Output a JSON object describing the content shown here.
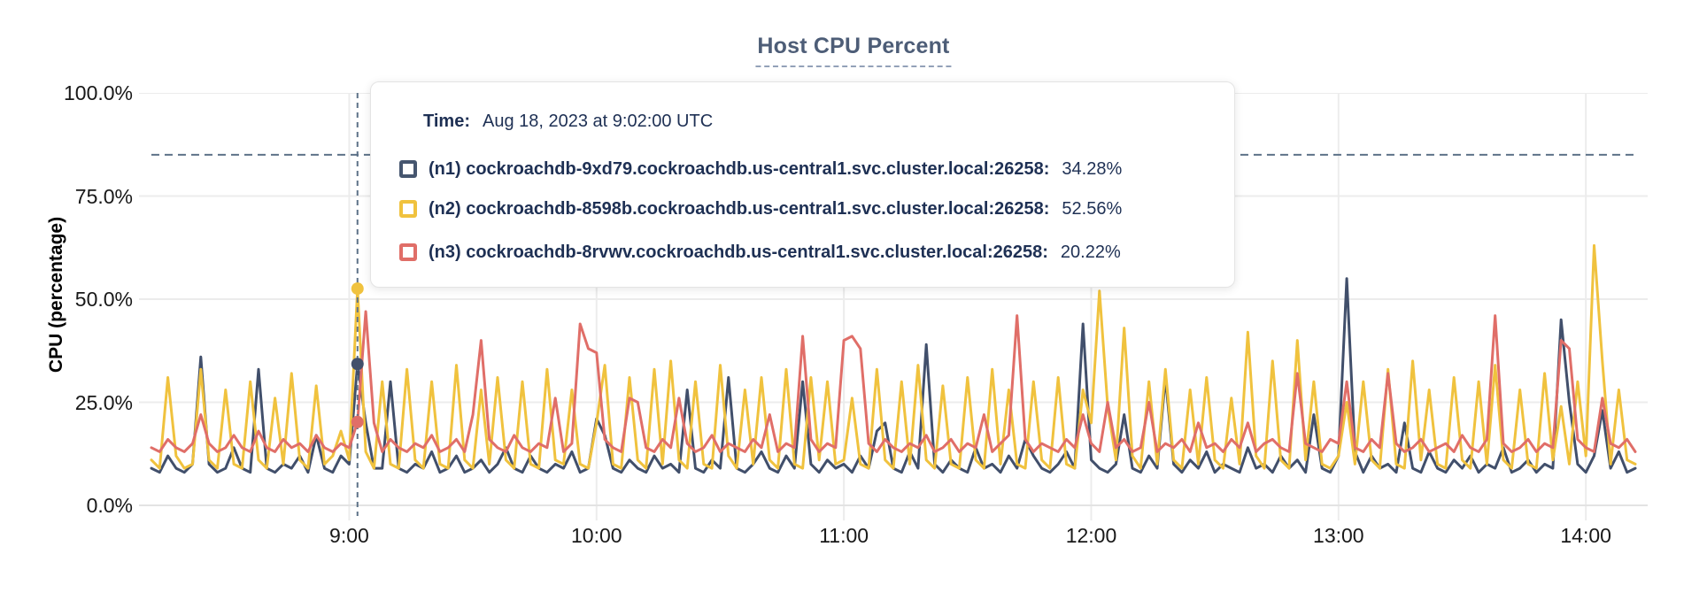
{
  "title": "Host CPU Percent",
  "y_axis_title": "CPU (percentage)",
  "tooltip": {
    "time_label": "Time:",
    "time_value": "Aug 18, 2023 at 9:02:00 UTC",
    "rows": [
      {
        "id": "n1",
        "node": "(n1) cockroachdb-9xd79.cockroachdb.us-central1.svc.cluster.local:26258:",
        "value": "34.28%",
        "color": "#46566f"
      },
      {
        "id": "n2",
        "node": "(n2) cockroachdb-8598b.cockroachdb.us-central1.svc.cluster.local:26258:",
        "value": "52.56%",
        "color": "#f0c23e"
      },
      {
        "id": "n3",
        "node": "(n3) cockroachdb-8rvwv.cockroachdb.us-central1.svc.cluster.local:26258:",
        "value": "20.22%",
        "color": "#e06e68"
      }
    ]
  },
  "colors": {
    "title": "#4d5d77",
    "grid": "#ececec",
    "baseline": "#e3e3e3",
    "dashed": "#5d7288",
    "tooltip_text": "#1e3054"
  },
  "chart_data": {
    "type": "line",
    "title": "Host CPU Percent",
    "xlabel": "",
    "ylabel": "CPU (percentage)",
    "ylim": [
      0,
      100
    ],
    "grid": true,
    "y_ticks": [
      {
        "label": "0.0%",
        "value": 0
      },
      {
        "label": "25.0%",
        "value": 25
      },
      {
        "label": "50.0%",
        "value": 50
      },
      {
        "label": "75.0%",
        "value": 75
      },
      {
        "label": "100.0%",
        "value": 100
      }
    ],
    "x_ticks": [
      {
        "label": "9:00",
        "minutes": 540
      },
      {
        "label": "10:00",
        "minutes": 600
      },
      {
        "label": "11:00",
        "minutes": 660
      },
      {
        "label": "12:00",
        "minutes": 720
      },
      {
        "label": "13:00",
        "minutes": 780
      },
      {
        "label": "14:00",
        "minutes": 840
      }
    ],
    "domain_minutes": [
      489,
      855
    ],
    "data_start_minutes": 492,
    "step_minutes": 2,
    "threshold_percent": 85,
    "hover": {
      "time_label": "Aug 18, 2023 at 9:02:00 UTC",
      "minutes": 542,
      "values": [
        34.28,
        52.56,
        20.22
      ]
    },
    "series": [
      {
        "name": "(n1) cockroachdb-9xd79.cockroachdb.us-central1.svc.cluster.local:26258",
        "color": "#414f6b",
        "values": [
          9,
          8,
          12,
          9,
          8,
          10,
          36,
          10,
          8,
          9,
          14,
          9,
          8,
          33,
          9,
          8,
          10,
          9,
          12,
          8,
          17,
          9,
          8,
          12,
          10,
          34.28,
          20,
          9,
          9,
          30,
          9,
          8,
          10,
          9,
          13,
          8,
          9,
          12,
          8,
          9,
          11,
          8,
          10,
          14,
          9,
          8,
          12,
          9,
          8,
          10,
          9,
          13,
          8,
          9,
          21,
          17,
          9,
          8,
          11,
          9,
          8,
          12,
          9,
          10,
          8,
          28,
          9,
          8,
          11,
          9,
          31,
          9,
          8,
          10,
          13,
          9,
          8,
          12,
          9,
          30,
          10,
          8,
          11,
          9,
          10,
          8,
          12,
          9,
          18,
          20,
          9,
          8,
          13,
          9,
          39,
          10,
          8,
          11,
          9,
          8,
          14,
          9,
          10,
          8,
          12,
          9,
          16,
          12,
          9,
          8,
          10,
          13,
          9,
          44,
          11,
          9,
          8,
          10,
          22,
          9,
          8,
          12,
          9,
          31,
          10,
          8,
          11,
          9,
          13,
          8,
          10,
          9,
          8,
          14,
          9,
          10,
          8,
          12,
          9,
          11,
          8,
          22,
          9,
          8,
          12,
          55,
          13,
          8,
          12,
          9,
          10,
          8,
          20,
          9,
          8,
          13,
          9,
          8,
          11,
          9,
          12,
          8,
          10,
          9,
          14,
          8,
          9,
          11,
          8,
          10,
          9,
          45,
          25,
          10,
          8,
          12,
          23,
          9,
          13,
          8,
          9
        ]
      },
      {
        "name": "(n2) cockroachdb-8598b.cockroachdb.us-central1.svc.cluster.local:26258",
        "color": "#f0c23e",
        "values": [
          11,
          9,
          31,
          12,
          9,
          10,
          33,
          11,
          9,
          28,
          10,
          9,
          30,
          11,
          9,
          26,
          10,
          32,
          11,
          9,
          29,
          10,
          12,
          18,
          11,
          52.56,
          13,
          9,
          30,
          10,
          9,
          33,
          11,
          9,
          30,
          10,
          9,
          34,
          11,
          9,
          28,
          10,
          31,
          11,
          9,
          30,
          10,
          9,
          33,
          11,
          10,
          28,
          10,
          9,
          20,
          34,
          10,
          9,
          31,
          11,
          9,
          33,
          10,
          35,
          11,
          9,
          30,
          10,
          9,
          34,
          12,
          9,
          28,
          10,
          31,
          11,
          9,
          33,
          10,
          9,
          31,
          11,
          30,
          10,
          11,
          26,
          10,
          9,
          33,
          11,
          9,
          30,
          10,
          34,
          11,
          9,
          29,
          10,
          9,
          31,
          11,
          9,
          33,
          10,
          28,
          10,
          9,
          30,
          11,
          9,
          31,
          10,
          9,
          28,
          20,
          52,
          24,
          11,
          43,
          12,
          9,
          30,
          10,
          33,
          11,
          9,
          28,
          10,
          31,
          11,
          9,
          26,
          10,
          42,
          12,
          9,
          35,
          11,
          9,
          40,
          11,
          30,
          10,
          9,
          12,
          25,
          10,
          30,
          11,
          9,
          33,
          10,
          9,
          35,
          11,
          28,
          10,
          9,
          31,
          11,
          9,
          30,
          10,
          34,
          11,
          9,
          28,
          10,
          9,
          32,
          11,
          24,
          10,
          30,
          12,
          63,
          35,
          10,
          28,
          11,
          10
        ]
      },
      {
        "name": "(n3) cockroachdb-8rvwv.cockroachdb.us-central1.svc.cluster.local:26258",
        "color": "#e06e68",
        "values": [
          14,
          13,
          16,
          14,
          13,
          15,
          22,
          15,
          13,
          14,
          17,
          14,
          13,
          18,
          14,
          13,
          16,
          14,
          15,
          13,
          17,
          14,
          13,
          15,
          14,
          20.22,
          47,
          20,
          13,
          16,
          14,
          13,
          15,
          14,
          17,
          13,
          14,
          16,
          13,
          22,
          40,
          16,
          14,
          13,
          17,
          14,
          13,
          15,
          14,
          26,
          13,
          15,
          44,
          38,
          37,
          16,
          14,
          13,
          26,
          25,
          14,
          13,
          16,
          14,
          26,
          15,
          13,
          14,
          17,
          13,
          15,
          14,
          13,
          16,
          14,
          22,
          13,
          15,
          14,
          41,
          16,
          13,
          15,
          14,
          40,
          41,
          38,
          15,
          13,
          16,
          14,
          13,
          15,
          14,
          17,
          13,
          14,
          16,
          13,
          15,
          14,
          22,
          13,
          15,
          17,
          46,
          16,
          13,
          15,
          14,
          13,
          16,
          14,
          22,
          15,
          13,
          25,
          14,
          16,
          13,
          14,
          25,
          13,
          15,
          14,
          16,
          13,
          20,
          14,
          15,
          13,
          16,
          14,
          20,
          13,
          15,
          16,
          14,
          13,
          32,
          15,
          14,
          13,
          16,
          15,
          30,
          14,
          13,
          16,
          14,
          32,
          15,
          13,
          14,
          16,
          13,
          14,
          15,
          13,
          17,
          14,
          13,
          16,
          46,
          15,
          13,
          14,
          16,
          13,
          15,
          14,
          40,
          38,
          16,
          14,
          13,
          26,
          15,
          14,
          16,
          13
        ]
      }
    ]
  }
}
